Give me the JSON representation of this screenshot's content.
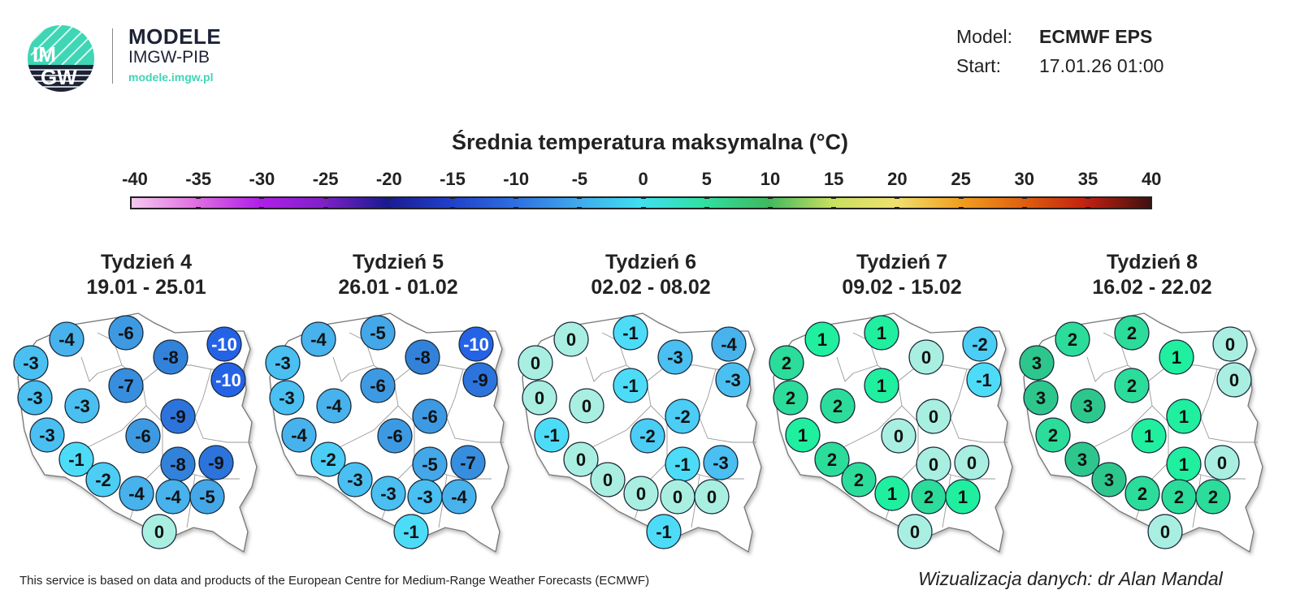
{
  "header": {
    "brand_title": "MODELE",
    "brand_subtitle": "IMGW-PIB",
    "brand_url": "modele.imgw.pl",
    "logo_text": "IMGW",
    "model_label": "Model:",
    "model_value": "ECMWF EPS",
    "start_label": "Start:",
    "start_value": "17.01.26 01:00"
  },
  "title": "Średnia temperatura maksymalna (°C)",
  "colorbar": {
    "ticks": [
      "-40",
      "-35",
      "-30",
      "-25",
      "-20",
      "-15",
      "-10",
      "-5",
      "0",
      "5",
      "10",
      "15",
      "20",
      "25",
      "30",
      "35",
      "40"
    ],
    "colors": [
      "#f4c8f0",
      "#e070e0",
      "#b020e8",
      "#8020c8",
      "#1a1a90",
      "#2040c8",
      "#2e6ee0",
      "#40a8ec",
      "#40e0f0",
      "#30e0a0",
      "#40b860",
      "#c8e060",
      "#f0e070",
      "#f0a020",
      "#e06010",
      "#c02010",
      "#401010"
    ]
  },
  "value_colors": {
    "-10": "#2563e6",
    "-9": "#2c74dc",
    "-8": "#3282da",
    "-7": "#378ede",
    "-6": "#3d9ae2",
    "-5": "#44a7e8",
    "-4": "#48b2ec",
    "-3": "#4abff1",
    "-2": "#4bcdf5",
    "-1": "#4ddcf8",
    "0": "#a9efe1",
    "1": "#1fef9f",
    "2": "#2cdc9a",
    "3": "#2dc78d"
  },
  "weeks": [
    {
      "label": "Tydzień 4",
      "dates": "19.01 - 25.01",
      "values": [
        -3,
        -4,
        -6,
        -8,
        -10,
        -10,
        -7,
        -3,
        -3,
        -3,
        -9,
        -6,
        -1,
        -2,
        -4,
        -9,
        -8,
        -4,
        -5,
        0
      ]
    },
    {
      "label": "Tydzień 5",
      "dates": "26.01 - 01.02",
      "values": [
        -3,
        -4,
        -5,
        -8,
        -10,
        -9,
        -6,
        -3,
        -4,
        -4,
        -6,
        -6,
        -2,
        -3,
        -3,
        -7,
        -5,
        -3,
        -4,
        -1
      ]
    },
    {
      "label": "Tydzień 6",
      "dates": "02.02 - 08.02",
      "values": [
        0,
        0,
        -1,
        -3,
        -4,
        -3,
        -1,
        0,
        0,
        -1,
        -2,
        -2,
        0,
        0,
        0,
        -3,
        -1,
        0,
        0,
        -1
      ]
    },
    {
      "label": "Tydzień 7",
      "dates": "09.02 - 15.02",
      "values": [
        2,
        1,
        1,
        0,
        -2,
        -1,
        1,
        2,
        2,
        1,
        0,
        0,
        2,
        2,
        1,
        0,
        0,
        2,
        1,
        0
      ]
    },
    {
      "label": "Tydzień 8",
      "dates": "16.02 - 22.02",
      "values": [
        3,
        2,
        2,
        1,
        0,
        0,
        2,
        3,
        3,
        2,
        1,
        1,
        3,
        3,
        2,
        0,
        1,
        2,
        2,
        0
      ]
    }
  ],
  "footer": {
    "source": "This service is based on data and products of the European Centre for Medium-Range Weather Forecasts (ECMWF)",
    "credit": "Wizualizacja danych: dr Alan Mandal"
  }
}
